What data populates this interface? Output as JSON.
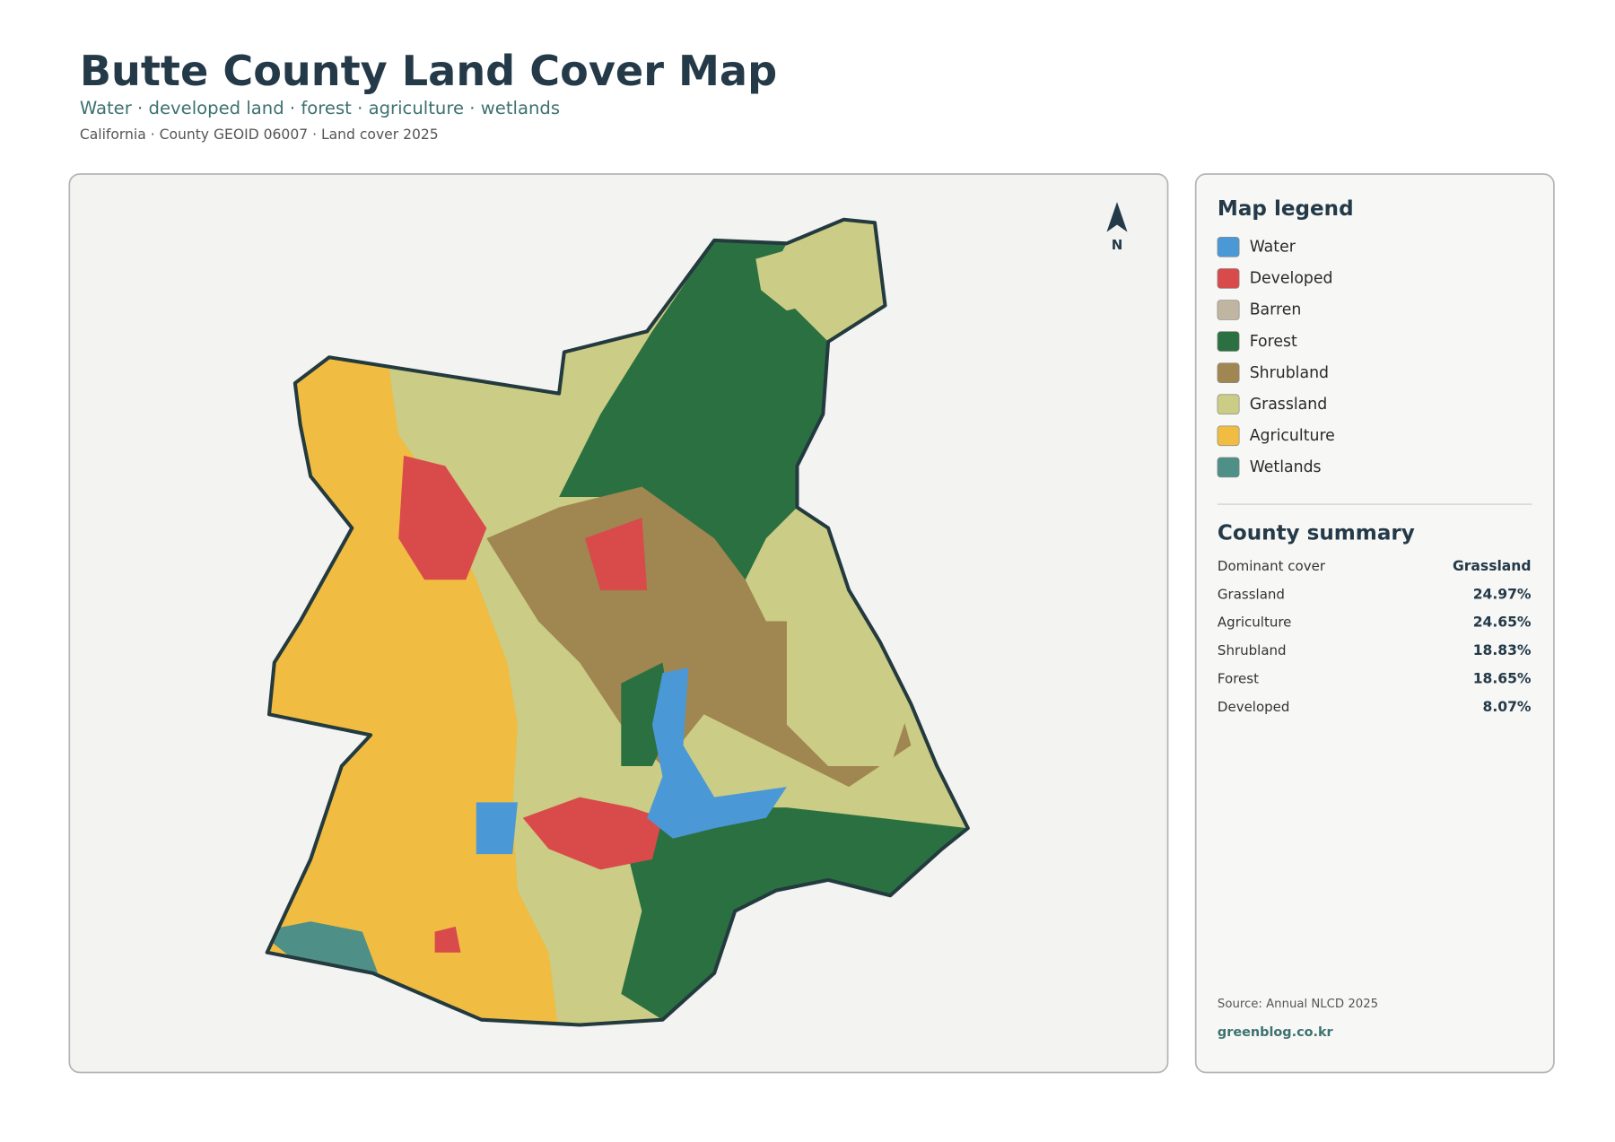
{
  "header": {
    "title": "Butte County Land Cover Map",
    "subtitle": "Water · developed land · forest · agriculture · wetlands",
    "meta": "California · County GEOID 06007 · Land cover 2025"
  },
  "map": {
    "north": "N"
  },
  "legend": {
    "title": "Map legend",
    "items": [
      {
        "name": "Water",
        "color": "#4a98d6"
      },
      {
        "name": "Developed",
        "color": "#d94a4a"
      },
      {
        "name": "Barren",
        "color": "#bfb5a0"
      },
      {
        "name": "Forest",
        "color": "#2b7040"
      },
      {
        "name": "Shrubland",
        "color": "#a08650"
      },
      {
        "name": "Grassland",
        "color": "#cbcc85"
      },
      {
        "name": "Agriculture",
        "color": "#f0bc42"
      },
      {
        "name": "Wetlands",
        "color": "#4e8f87"
      }
    ]
  },
  "summary": {
    "title": "County summary",
    "rows": [
      [
        "Dominant cover",
        "Grassland"
      ],
      [
        "Grassland",
        "24.97%"
      ],
      [
        "Agriculture",
        "24.65%"
      ],
      [
        "Shrubland",
        "18.83%"
      ],
      [
        "Forest",
        "18.65%"
      ],
      [
        "Developed",
        "8.07%"
      ]
    ]
  },
  "footer": {
    "source": "Source: Annual NLCD 2025",
    "credit": "greenblog.co.kr"
  }
}
